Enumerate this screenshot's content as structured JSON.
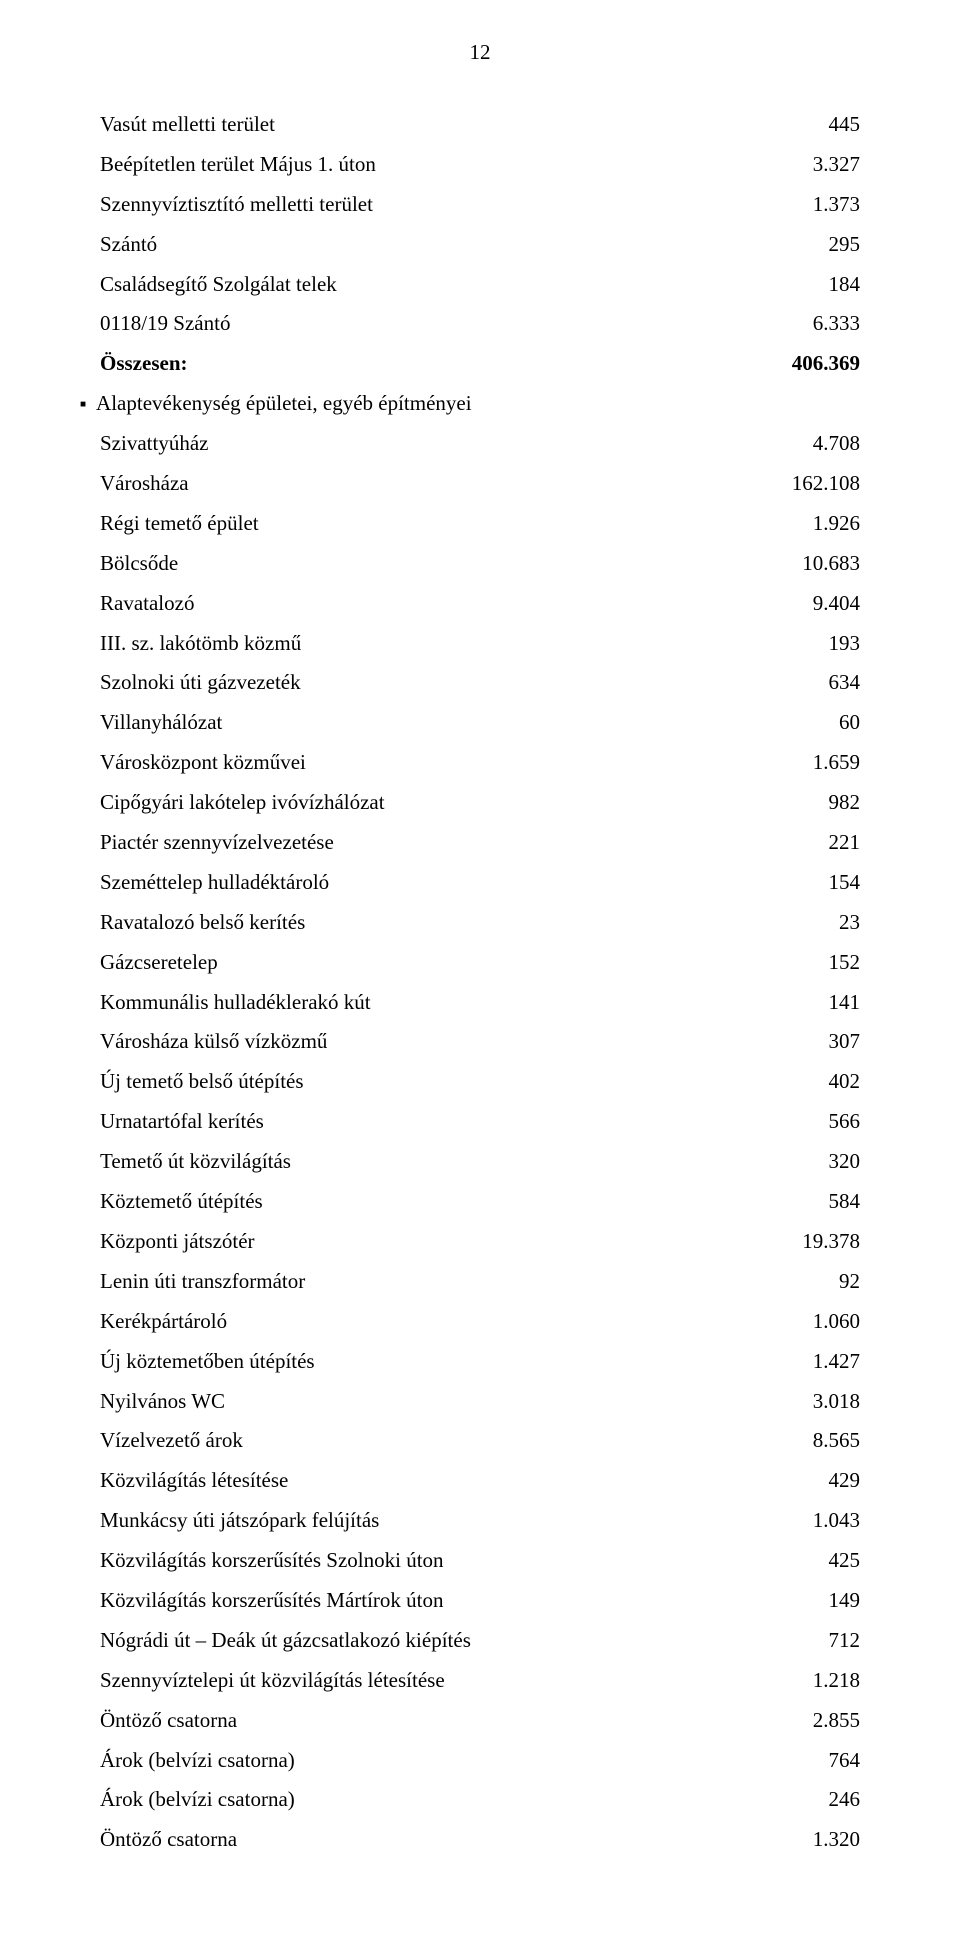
{
  "page_number": "12",
  "rows": [
    {
      "label": "Vasút melletti terület",
      "value": "445"
    },
    {
      "label": "Beépítetlen terület Május 1. úton",
      "value": "3.327"
    },
    {
      "label": "Szennyvíztisztító melletti terület",
      "value": "1.373"
    },
    {
      "label": "Szántó",
      "value": "295"
    },
    {
      "label": "Családsegítő Szolgálat telek",
      "value": "184"
    },
    {
      "label": "0118/19 Szántó",
      "value": "6.333"
    },
    {
      "label": "Összesen:",
      "value": "406.369",
      "bold": true
    },
    {
      "label": "Alaptevékenység épületei, egyéb építményei",
      "value": "",
      "bullet": true
    },
    {
      "label": "Szivattyúház",
      "value": "4.708"
    },
    {
      "label": "Városháza",
      "value": "162.108"
    },
    {
      "label": "Régi temető épület",
      "value": "1.926"
    },
    {
      "label": "Bölcsőde",
      "value": "10.683"
    },
    {
      "label": "Ravatalozó",
      "value": "9.404"
    },
    {
      "label": "III. sz. lakótömb közmű",
      "value": "193"
    },
    {
      "label": "Szolnoki úti gázvezeték",
      "value": "634"
    },
    {
      "label": "Villanyhálózat",
      "value": "60"
    },
    {
      "label": "Városközpont közművei",
      "value": "1.659"
    },
    {
      "label": "Cipőgyári lakótelep ivóvízhálózat",
      "value": "982"
    },
    {
      "label": "Piactér szennyvízelvezetése",
      "value": "221"
    },
    {
      "label": "Szeméttelep hulladéktároló",
      "value": "154"
    },
    {
      "label": "Ravatalozó belső kerítés",
      "value": "23"
    },
    {
      "label": "Gázcseretelep",
      "value": "152"
    },
    {
      "label": "Kommunális hulladéklerakó kút",
      "value": "141"
    },
    {
      "label": "Városháza külső vízközmű",
      "value": "307"
    },
    {
      "label": "Új temető belső útépítés",
      "value": "402"
    },
    {
      "label": "Urnatartófal kerítés",
      "value": "566"
    },
    {
      "label": "Temető út közvilágítás",
      "value": "320"
    },
    {
      "label": "Köztemető útépítés",
      "value": "584"
    },
    {
      "label": "Központi játszótér",
      "value": "19.378"
    },
    {
      "label": "Lenin úti transzformátor",
      "value": "92"
    },
    {
      "label": "Kerékpártároló",
      "value": "1.060"
    },
    {
      "label": "Új köztemetőben útépítés",
      "value": "1.427"
    },
    {
      "label": "Nyilvános WC",
      "value": "3.018"
    },
    {
      "label": "Vízelvezető árok",
      "value": "8.565"
    },
    {
      "label": "Közvilágítás létesítése",
      "value": "429"
    },
    {
      "label": "Munkácsy úti játszópark felújítás",
      "value": "1.043"
    },
    {
      "label": "Közvilágítás korszerűsítés Szolnoki úton",
      "value": "425"
    },
    {
      "label": "Közvilágítás korszerűsítés Mártírok úton",
      "value": "149"
    },
    {
      "label": "Nógrádi út – Deák út gázcsatlakozó kiépítés",
      "value": "712"
    },
    {
      "label": "Szennyvíztelepi út közvilágítás létesítése",
      "value": "1.218"
    },
    {
      "label": "Öntöző csatorna",
      "value": "2.855"
    },
    {
      "label": "Árok (belvízi csatorna)",
      "value": "764"
    },
    {
      "label": "Árok (belvízi csatorna)",
      "value": "246"
    },
    {
      "label": "Öntöző csatorna",
      "value": "1.320"
    }
  ]
}
